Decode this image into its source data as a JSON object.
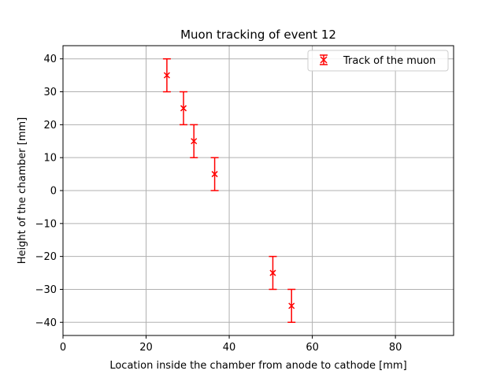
{
  "chart_data": {
    "type": "scatter",
    "title": "Muon tracking of event 12",
    "xlabel": "Location inside the chamber from anode to cathode [mm]",
    "ylabel": "Height of the chamber [mm]",
    "xlim": [
      0,
      94
    ],
    "ylim": [
      -44,
      44
    ],
    "xticks": [
      0,
      20,
      40,
      60,
      80
    ],
    "yticks": [
      -40,
      -30,
      -20,
      -10,
      0,
      10,
      20,
      30,
      40
    ],
    "xtick_labels": [
      "0",
      "20",
      "40",
      "60",
      "80"
    ],
    "ytick_labels": [
      "−40",
      "−30",
      "−20",
      "−10",
      "0",
      "10",
      "20",
      "30",
      "40"
    ],
    "grid": true,
    "legend_position": "top-right",
    "series": [
      {
        "name": "Track of the muon",
        "color": "#ff0000",
        "marker": "x",
        "x": [
          25.0,
          29.0,
          31.5,
          36.5,
          50.5,
          55.0
        ],
        "y": [
          35,
          25,
          15,
          5,
          -25,
          -35
        ],
        "yerr": [
          5,
          5,
          5,
          5,
          5,
          5
        ]
      }
    ]
  }
}
